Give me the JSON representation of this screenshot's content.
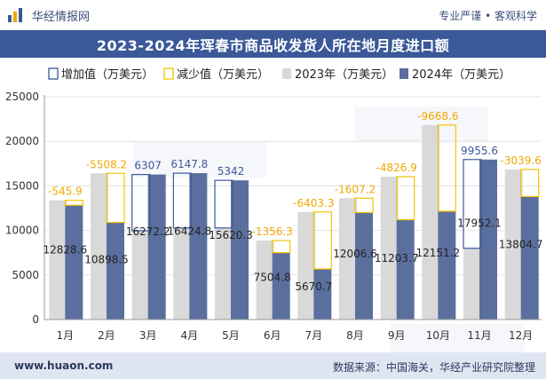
{
  "header": {
    "brand_name": "华经情报网",
    "slogan": "专业严谨 • 客观科学"
  },
  "title": "2023-2024年珲春市商品收发货人所在地月度进口额",
  "footer": {
    "url": "www.huaon.com",
    "source": "数据来源：中国海关，华经产业研究院整理"
  },
  "colors": {
    "title_bg": "#3b5998",
    "series_2023": "#d9d9d9",
    "series_2024": "#5b6f9e",
    "increase_border": "#3b5998",
    "decrease_border": "#f5c400",
    "increase_label": "#3b5998",
    "decrease_label": "#f0a800"
  },
  "chart_data": {
    "type": "bar",
    "categories": [
      "1月",
      "2月",
      "3月",
      "4月",
      "5月",
      "6月",
      "7月",
      "8月",
      "9月",
      "10月",
      "11月",
      "12月"
    ],
    "series": [
      {
        "name": "2023年（万美元）",
        "values": [
          13374.5,
          16406.7,
          9965.2,
          10277.0,
          10278.3,
          8861.1,
          12074.0,
          13613.9,
          16030.4,
          21820.3,
          7996.5,
          16844.4
        ]
      },
      {
        "name": "2024年（万美元）",
        "values": [
          12828.6,
          10898.5,
          16272.2,
          16424.8,
          15620.3,
          7504.8,
          5670.7,
          12006.6,
          11203.7,
          12151.2,
          17952.1,
          13804.7
        ]
      }
    ],
    "change": {
      "labels": [
        "-545.9",
        "-5508.2",
        "6307",
        "6147.8",
        "5342",
        "-1356.3",
        "-6403.3",
        "-1607.2",
        "-4826.9",
        "-9668.6",
        "9955.6",
        "-3039.6"
      ],
      "values": [
        -545.9,
        -5508.2,
        6307,
        6147.8,
        5342,
        -1356.3,
        -6403.3,
        -1607.2,
        -4826.9,
        -9668.6,
        9955.6,
        -3039.6
      ]
    },
    "value_labels_2024": [
      "12828.6",
      "10898.5",
      "16272.2",
      "16424.8",
      "15620.3",
      "7504.8",
      "5670.7",
      "12006.6",
      "11203.7",
      "12151.2",
      "17952.1",
      "13804.7"
    ],
    "legend": [
      "增加值（万美元）",
      "减少值（万美元）",
      "2023年（万美元）",
      "2024年（万美元）"
    ],
    "legend_position": "top",
    "yticks": [
      "0",
      "5000",
      "10000",
      "15000",
      "20000",
      "25000"
    ],
    "ylim": [
      0,
      25000
    ],
    "grid": true
  }
}
